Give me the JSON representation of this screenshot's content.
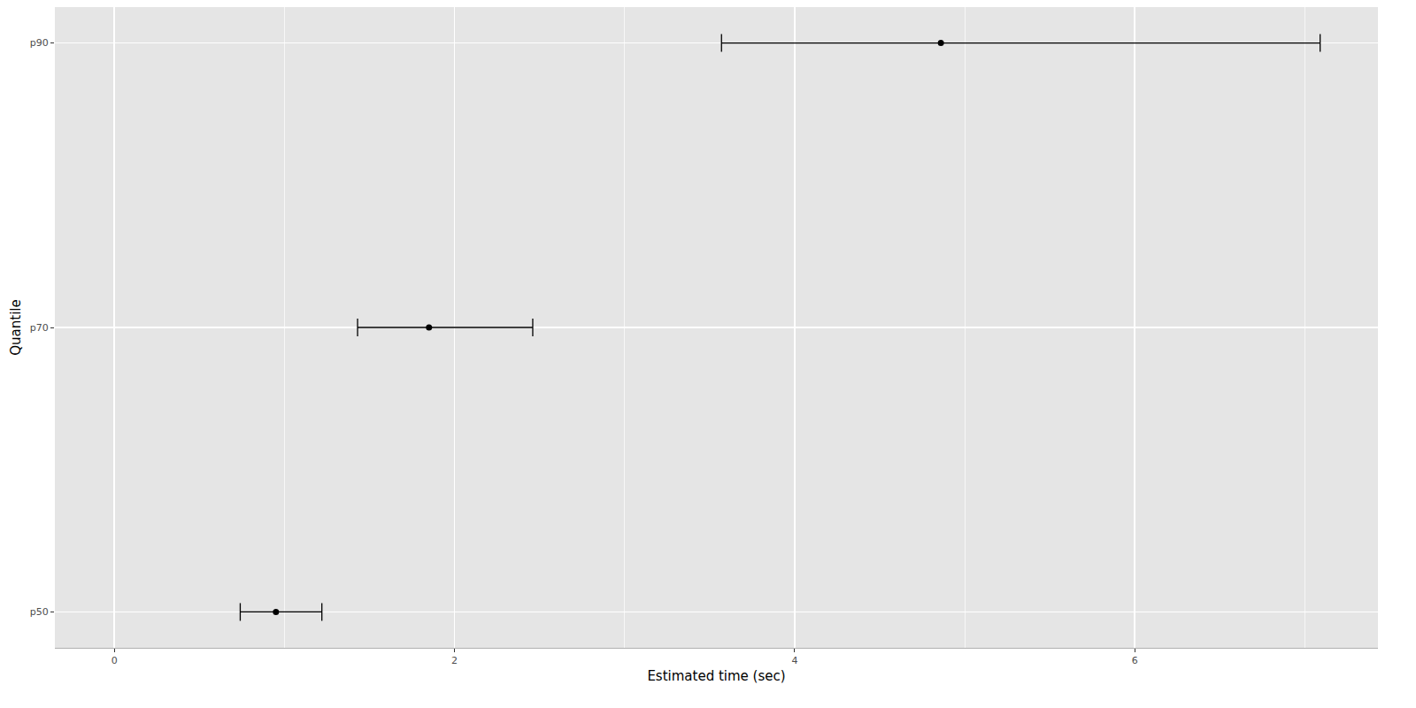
{
  "chart_data": {
    "type": "scatter",
    "x_label": "Estimated time (sec)",
    "y_label": "Quantile",
    "categories": [
      "p50",
      "p70",
      "p90"
    ],
    "values": [
      0.95,
      1.85,
      4.86
    ],
    "lower": [
      0.74,
      1.43,
      3.57
    ],
    "upper": [
      1.22,
      2.46,
      7.09
    ],
    "color": "#000000",
    "marker": "circle",
    "xlim": [
      -0.35,
      7.43
    ],
    "xticks": [
      0,
      2,
      4,
      6
    ],
    "grid": true
  }
}
